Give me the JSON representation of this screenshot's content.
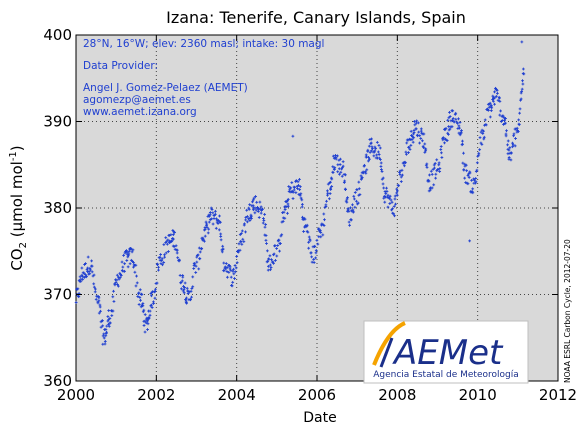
{
  "chart_data": {
    "type": "scatter",
    "title": "Izana:  Tenerife, Canary Islands, Spain",
    "xlabel": "Date",
    "ylabel": "CO₂ (µmol mol⁻¹)",
    "xlim": [
      2000,
      2012
    ],
    "ylim": [
      360,
      400
    ],
    "xticks": [
      2000,
      2002,
      2004,
      2006,
      2008,
      2010,
      2012
    ],
    "yticks": [
      360,
      370,
      380,
      390,
      400
    ],
    "grid": true,
    "point_color": "#1f3fd0",
    "background": "#d9d9d9",
    "annotations": [
      "28°N, 16°W; elev: 2360 masl; intake: 30 magl",
      "Data Provider:",
      "Angel J. Gomez-Pelaez (AEMET)",
      "agomezp@aemet.es",
      "www.aemet.izana.org"
    ],
    "credit": "NOAA ESRL Carbon Cycle, 2012-07-20",
    "series": [
      {
        "x": [
          2000.0,
          2000.17,
          2000.35,
          2000.55,
          2000.7,
          2000.85,
          2001.05,
          2001.25,
          2001.4,
          2001.6,
          2001.75,
          2001.9,
          2002.1,
          2002.3,
          2002.45,
          2002.65,
          2002.8,
          2003.0,
          2003.2,
          2003.35,
          2003.55,
          2003.7,
          2003.9,
          2004.1,
          2004.3,
          2004.45,
          2004.65,
          2004.8,
          2005.0,
          2005.2,
          2005.35,
          2005.55,
          2005.7,
          2005.9,
          2006.1,
          2006.3,
          2006.45,
          2006.65,
          2006.8,
          2007.0,
          2007.2,
          2007.35,
          2007.55,
          2007.7,
          2007.9,
          2008.1,
          2008.3,
          2008.45,
          2008.65,
          2008.8,
          2009.0,
          2009.2,
          2009.35,
          2009.55,
          2009.7,
          2009.9,
          2010.1,
          2010.3,
          2010.45,
          2010.65,
          2010.8,
          2011.0,
          2011.15
        ],
        "y": [
          369.5,
          372.5,
          373.5,
          369.0,
          365.0,
          367.5,
          372.0,
          374.0,
          374.5,
          369.5,
          366.5,
          369.5,
          374.0,
          376.0,
          376.5,
          371.5,
          369.5,
          373.5,
          377.0,
          379.0,
          378.5,
          373.5,
          372.0,
          376.0,
          379.5,
          380.5,
          379.5,
          373.5,
          375.0,
          379.5,
          382.0,
          382.5,
          378.0,
          374.5,
          377.5,
          382.0,
          385.5,
          384.5,
          379.0,
          381.5,
          385.0,
          387.0,
          386.5,
          381.5,
          380.0,
          384.0,
          387.5,
          389.5,
          388.0,
          383.0,
          384.5,
          388.5,
          390.5,
          389.5,
          384.0,
          382.5,
          388.0,
          391.5,
          393.0,
          390.5,
          386.0,
          389.0,
          395.5
        ]
      }
    ],
    "outliers": [
      [
        2005.4,
        388.3
      ],
      [
        2009.8,
        376.2
      ],
      [
        2011.1,
        399.2
      ]
    ]
  },
  "logo": {
    "text": "AEMet",
    "subtitle": "Agencia Estatal de Meteorología"
  }
}
